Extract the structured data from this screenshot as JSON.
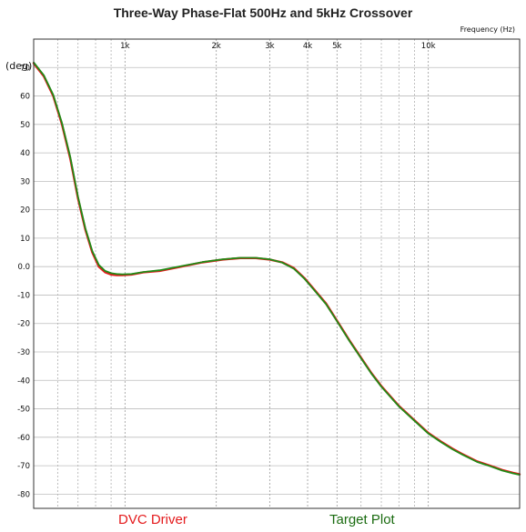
{
  "chart_data": {
    "type": "line",
    "title": "Three-Way Phase-Flat 500Hz and 5kHz Crossover",
    "xlabel": "Frequency   (Hz)",
    "ylabel": "(deg)",
    "x_scale": "log",
    "xlim": [
      500,
      20000
    ],
    "ylim": [
      -85,
      80
    ],
    "x_ticks": [
      {
        "value": 1000,
        "label": "1k"
      },
      {
        "value": 2000,
        "label": "2k"
      },
      {
        "value": 3000,
        "label": "3k"
      },
      {
        "value": 4000,
        "label": "4k"
      },
      {
        "value": 5000,
        "label": "5k"
      },
      {
        "value": 10000,
        "label": "10k"
      }
    ],
    "x_minor_grid": [
      600,
      700,
      800,
      900,
      6000,
      7000,
      8000,
      9000,
      20000
    ],
    "y_ticks": [
      {
        "value": 70,
        "label": "70"
      },
      {
        "value": 60,
        "label": "60"
      },
      {
        "value": 50,
        "label": "50"
      },
      {
        "value": 40,
        "label": "40"
      },
      {
        "value": 30,
        "label": "30"
      },
      {
        "value": 20,
        "label": "20"
      },
      {
        "value": 10,
        "label": "10"
      },
      {
        "value": 0,
        "label": "0.0"
      },
      {
        "value": -10,
        "label": "-10"
      },
      {
        "value": -20,
        "label": "-20"
      },
      {
        "value": -30,
        "label": "-30"
      },
      {
        "value": -40,
        "label": "-40"
      },
      {
        "value": -50,
        "label": "-50"
      },
      {
        "value": -60,
        "label": "-60"
      },
      {
        "value": -70,
        "label": "-70"
      },
      {
        "value": -80,
        "label": "-80"
      }
    ],
    "grid": true,
    "legend_position": "bottom",
    "series": [
      {
        "name": "DVC Driver",
        "color": "#e41a1c",
        "x": [
          500,
          540,
          580,
          620,
          660,
          700,
          740,
          780,
          820,
          860,
          900,
          940,
          980,
          1050,
          1150,
          1300,
          1500,
          1800,
          2100,
          2400,
          2700,
          3000,
          3300,
          3600,
          3900,
          4200,
          4600,
          5000,
          5500,
          6000,
          6500,
          7000,
          8000,
          9000,
          10000,
          11000,
          12000,
          13000,
          14500,
          16000,
          17500,
          19000,
          20000
        ],
        "y": [
          71.5,
          67,
          60,
          50,
          38,
          24,
          13,
          5,
          0,
          -2,
          -2.8,
          -3,
          -3,
          -2.8,
          -2,
          -1.5,
          -0.2,
          1.5,
          2.5,
          3,
          3,
          2.5,
          1.5,
          -0.5,
          -4,
          -8,
          -13,
          -19,
          -26,
          -32,
          -37.5,
          -42,
          -49,
          -54,
          -58.5,
          -61.5,
          -64,
          -66,
          -68.5,
          -70,
          -71.5,
          -72.5,
          -73
        ]
      },
      {
        "name": "Target Plot",
        "color": "#1f8b16",
        "x": [
          500,
          540,
          580,
          620,
          660,
          700,
          740,
          780,
          820,
          860,
          900,
          940,
          980,
          1050,
          1150,
          1300,
          1500,
          1800,
          2100,
          2400,
          2700,
          3000,
          3300,
          3600,
          3900,
          4200,
          4600,
          5000,
          5500,
          6000,
          6500,
          7000,
          8000,
          9000,
          10000,
          11000,
          12000,
          13000,
          14500,
          16000,
          17500,
          19000,
          20000
        ],
        "y": [
          71.8,
          67.3,
          60.4,
          50.5,
          38.6,
          24.6,
          13.5,
          5.5,
          0.6,
          -1.5,
          -2.3,
          -2.6,
          -2.7,
          -2.6,
          -1.9,
          -1.3,
          0,
          1.6,
          2.6,
          3.1,
          3.1,
          2.6,
          1.4,
          -0.7,
          -4.2,
          -8.2,
          -13.2,
          -19.2,
          -26.2,
          -32.2,
          -37.7,
          -42.2,
          -49.2,
          -54.2,
          -58.7,
          -61.7,
          -64.2,
          -66.2,
          -68.7,
          -70.2,
          -71.7,
          -72.7,
          -73.2
        ]
      }
    ]
  }
}
